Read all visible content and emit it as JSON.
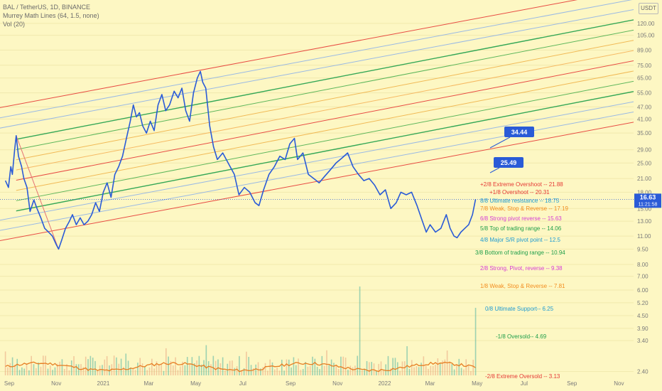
{
  "header": {
    "symbol_line": "BAL / TetherUS, 1D, BINANCE",
    "indicator_line": "Murrey Math Lines (64, 1.5, none)",
    "volume_line": "Vol (20)"
  },
  "currency_badge": "USDT",
  "chart_data": {
    "type": "line",
    "title": "BAL / TetherUS, 1D, BINANCE",
    "y_scale": "log",
    "ylim": [
      2.3,
      150
    ],
    "y_ticks": [
      "120.00",
      "105.00",
      "89.00",
      "75.00",
      "65.00",
      "55.00",
      "47.00",
      "41.00",
      "35.00",
      "29.00",
      "25.00",
      "21.00",
      "18.00",
      "15.00",
      "13.00",
      "11.00",
      "9.50",
      "8.00",
      "7.00",
      "6.00",
      "5.20",
      "4.50",
      "3.90",
      "3.40",
      "2.40"
    ],
    "x_ticks": [
      "Sep",
      "Nov",
      "2021",
      "Mar",
      "May",
      "Jul",
      "Sep",
      "Nov",
      "2022",
      "Mar",
      "May",
      "Jul",
      "Sep",
      "Nov"
    ],
    "x_range": [
      "2020-08-20",
      "2022-11-20"
    ],
    "series": [
      {
        "color": "#2a5bd7",
        "points": [
          [
            "2020-08-27",
            20.5
          ],
          [
            "2020-08-31",
            19.0
          ],
          [
            "2020-09-03",
            24.0
          ],
          [
            "2020-09-05",
            22.0
          ],
          [
            "2020-09-08",
            29.0
          ],
          [
            "2020-09-10",
            34.0
          ],
          [
            "2020-09-13",
            27.0
          ],
          [
            "2020-09-17",
            24.0
          ],
          [
            "2020-09-20",
            21.0
          ],
          [
            "2020-09-24",
            19.0
          ],
          [
            "2020-09-28",
            14.5
          ],
          [
            "2020-10-03",
            16.5
          ],
          [
            "2020-10-07",
            15.0
          ],
          [
            "2020-10-12",
            13.5
          ],
          [
            "2020-10-17",
            12.0
          ],
          [
            "2020-10-22",
            11.5
          ],
          [
            "2020-10-27",
            11.0
          ],
          [
            "2020-11-01",
            10.0
          ],
          [
            "2020-11-04",
            9.5
          ],
          [
            "2020-11-08",
            10.5
          ],
          [
            "2020-11-13",
            12.0
          ],
          [
            "2020-11-18",
            13.0
          ],
          [
            "2020-11-22",
            14.0
          ],
          [
            "2020-11-27",
            12.5
          ],
          [
            "2020-12-02",
            13.5
          ],
          [
            "2020-12-07",
            12.5
          ],
          [
            "2020-12-12",
            13.0
          ],
          [
            "2020-12-17",
            14.0
          ],
          [
            "2020-12-22",
            16.0
          ],
          [
            "2020-12-27",
            14.5
          ],
          [
            "2021-01-01",
            18.0
          ],
          [
            "2021-01-06",
            20.0
          ],
          [
            "2021-01-11",
            17.0
          ],
          [
            "2021-01-16",
            22.0
          ],
          [
            "2021-01-21",
            24.0
          ],
          [
            "2021-01-26",
            27.0
          ],
          [
            "2021-01-31",
            33.0
          ],
          [
            "2021-02-05",
            40.0
          ],
          [
            "2021-02-09",
            48.0
          ],
          [
            "2021-02-13",
            42.0
          ],
          [
            "2021-02-17",
            44.0
          ],
          [
            "2021-02-21",
            38.0
          ],
          [
            "2021-02-26",
            35.0
          ],
          [
            "2021-03-03",
            40.0
          ],
          [
            "2021-03-08",
            36.0
          ],
          [
            "2021-03-13",
            48.0
          ],
          [
            "2021-03-18",
            54.0
          ],
          [
            "2021-03-23",
            45.0
          ],
          [
            "2021-03-28",
            48.0
          ],
          [
            "2021-04-03",
            56.0
          ],
          [
            "2021-04-08",
            52.0
          ],
          [
            "2021-04-13",
            58.0
          ],
          [
            "2021-04-18",
            45.0
          ],
          [
            "2021-04-23",
            40.0
          ],
          [
            "2021-04-28",
            55.0
          ],
          [
            "2021-05-03",
            65.0
          ],
          [
            "2021-05-07",
            70.0
          ],
          [
            "2021-05-10",
            62.0
          ],
          [
            "2021-05-14",
            58.0
          ],
          [
            "2021-05-19",
            38.0
          ],
          [
            "2021-05-24",
            30.0
          ],
          [
            "2021-05-29",
            26.0
          ],
          [
            "2021-06-05",
            28.0
          ],
          [
            "2021-06-12",
            25.0
          ],
          [
            "2021-06-20",
            22.0
          ],
          [
            "2021-06-26",
            17.5
          ],
          [
            "2021-07-03",
            19.0
          ],
          [
            "2021-07-10",
            18.0
          ],
          [
            "2021-07-17",
            16.0
          ],
          [
            "2021-07-22",
            15.5
          ],
          [
            "2021-07-28",
            18.5
          ],
          [
            "2021-08-04",
            22.0
          ],
          [
            "2021-08-11",
            24.0
          ],
          [
            "2021-08-18",
            27.0
          ],
          [
            "2021-08-25",
            26.0
          ],
          [
            "2021-08-31",
            31.0
          ],
          [
            "2021-09-06",
            33.0
          ],
          [
            "2021-09-10",
            26.0
          ],
          [
            "2021-09-17",
            28.0
          ],
          [
            "2021-09-24",
            22.0
          ],
          [
            "2021-10-01",
            21.0
          ],
          [
            "2021-10-08",
            20.0
          ],
          [
            "2021-10-15",
            21.5
          ],
          [
            "2021-10-22",
            23.0
          ],
          [
            "2021-10-30",
            25.0
          ],
          [
            "2021-11-07",
            26.5
          ],
          [
            "2021-11-14",
            28.0
          ],
          [
            "2021-11-21",
            24.0
          ],
          [
            "2021-11-28",
            22.0
          ],
          [
            "2021-12-05",
            20.5
          ],
          [
            "2021-12-12",
            21.0
          ],
          [
            "2021-12-19",
            19.5
          ],
          [
            "2021-12-26",
            17.5
          ],
          [
            "2022-01-02",
            18.5
          ],
          [
            "2022-01-09",
            15.0
          ],
          [
            "2022-01-16",
            16.0
          ],
          [
            "2022-01-22",
            18.0
          ],
          [
            "2022-01-29",
            17.5
          ],
          [
            "2022-02-05",
            18.0
          ],
          [
            "2022-02-12",
            15.5
          ],
          [
            "2022-02-19",
            13.0
          ],
          [
            "2022-02-24",
            11.5
          ],
          [
            "2022-03-01",
            12.5
          ],
          [
            "2022-03-08",
            11.5
          ],
          [
            "2022-03-15",
            12.0
          ],
          [
            "2022-03-22",
            14.0
          ],
          [
            "2022-03-27",
            12.0
          ],
          [
            "2022-04-01",
            11.0
          ],
          [
            "2022-04-05",
            10.8
          ],
          [
            "2022-04-10",
            11.5
          ],
          [
            "2022-04-15",
            12.0
          ],
          [
            "2022-04-20",
            12.5
          ],
          [
            "2022-04-25",
            14.0
          ],
          [
            "2022-04-29",
            16.63
          ]
        ]
      }
    ],
    "volume": {
      "color_up": "#4fb3a2",
      "color_down": "#e9a47e",
      "ma_color": "#e67e22"
    },
    "murrey_channel": [
      {
        "color": "#e53935"
      },
      {
        "color": "#8fb3e8"
      },
      {
        "color": "#8fb3e8"
      },
      {
        "color": "#1e9e4a"
      },
      {
        "color": "#4caf50"
      },
      {
        "color": "#f0b34a"
      },
      {
        "color": "#f5b25a"
      },
      {
        "color": "#e53935"
      },
      {
        "color": "#f0b34a"
      },
      {
        "color": "#4caf50"
      },
      {
        "color": "#1e9e4a"
      },
      {
        "color": "#8fb3e8"
      },
      {
        "color": "#8fb3e8"
      },
      {
        "color": "#e53935"
      }
    ],
    "murrey_levels": [
      {
        "label": "+2/8 Extreme Overshoot --  21.88",
        "color": "#e53935"
      },
      {
        "label": "+1/8 Overshoot --  20.31",
        "color": "#e53935"
      },
      {
        "label": "8/8 Ultimate resistance --  18.75",
        "color": "#1f9bd1"
      },
      {
        "label": "7/8 Weak, Stop & Reverse --  17.19",
        "color": "#f28c1e"
      },
      {
        "label": "6/8 Strong pivot reverse --  15.63",
        "color": "#d63cd6"
      },
      {
        "label": "5/8 Top of trading range --  14.06",
        "color": "#1e9e4a"
      },
      {
        "label": "4/8 Major S/R pivot point --  12.5",
        "color": "#1f9bd1"
      },
      {
        "label": "3/8 Bottom of trading range --  10.94",
        "color": "#1e9e4a"
      },
      {
        "label": "2/8 Strong, Pivot, reverse --  9.38",
        "color": "#d63cd6"
      },
      {
        "label": "1/8 Weak, Stop & Reverse --  7.81",
        "color": "#f28c1e"
      },
      {
        "label": "0/8 Ultimate Support--  6.25",
        "color": "#1f9bd1"
      },
      {
        "label": "-1/8 Oversold--  4.69",
        "color": "#1e9e4a"
      },
      {
        "label": "-2/8 Extreme Oversold --  3.13",
        "color": "#e53935"
      }
    ],
    "callouts": [
      {
        "label": "34.44"
      },
      {
        "label": "25.49"
      }
    ],
    "last_price": {
      "value": "16.63",
      "timer": "11:21:58",
      "color": "#2a5bd7"
    }
  }
}
